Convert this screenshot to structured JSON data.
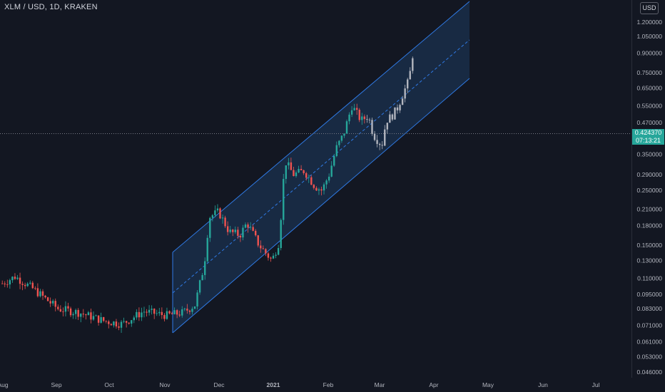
{
  "header": {
    "title": "XLM / USD, 1D, KRAKEN",
    "currency_button": "USD"
  },
  "last_price": {
    "value": "0.424370",
    "countdown": "07:13:21"
  },
  "colors": {
    "background": "#131722",
    "up": "#26a69a",
    "down": "#ef5350",
    "recent": "#b2b5be",
    "channel": "#2962ff",
    "grid_text": "#b2b5be"
  },
  "chart_data": {
    "type": "candlestick",
    "title": "XLM / USD, 1D, KRAKEN",
    "y_scale": "log",
    "ylim": [
      0.043,
      1.43
    ],
    "y_ticks": [
      "1.200000",
      "1.050000",
      "0.900000",
      "0.750000",
      "0.650000",
      "0.550000",
      "0.470000",
      "0.350000",
      "0.290000",
      "0.250000",
      "0.210000",
      "0.180000",
      "0.150000",
      "0.130000",
      "0.110000",
      "0.095000",
      "0.083000",
      "0.071000",
      "0.061000",
      "0.053000",
      "0.046000"
    ],
    "x_ticks": [
      "Aug",
      "Sep",
      "Oct",
      "Nov",
      "Dec",
      "2021",
      "Feb",
      "Mar",
      "Apr",
      "May",
      "Jun",
      "Jul"
    ],
    "anchors": [
      {
        "date": "Aug",
        "price": 0.105
      },
      {
        "date": "Aug",
        "price": 0.112
      },
      {
        "date": "Aug",
        "price": 0.1
      },
      {
        "date": "Sep",
        "price": 0.083
      },
      {
        "date": "Sep",
        "price": 0.08
      },
      {
        "date": "Oct",
        "price": 0.074
      },
      {
        "date": "Oct",
        "price": 0.072
      },
      {
        "date": "Oct",
        "price": 0.081
      },
      {
        "date": "Nov",
        "price": 0.078
      },
      {
        "date": "Nov",
        "price": 0.08
      },
      {
        "date": "Nov",
        "price": 0.086
      },
      {
        "date": "Nov",
        "price": 0.125
      },
      {
        "date": "Nov",
        "price": 0.195
      },
      {
        "date": "Dec",
        "price": 0.205
      },
      {
        "date": "Dec",
        "price": 0.17
      },
      {
        "date": "Dec",
        "price": 0.165
      },
      {
        "date": "Dec",
        "price": 0.185
      },
      {
        "date": "Dec",
        "price": 0.15
      },
      {
        "date": "Dec",
        "price": 0.13
      },
      {
        "date": "2021",
        "price": 0.155
      },
      {
        "date": "2021",
        "price": 0.33
      },
      {
        "date": "2021",
        "price": 0.29
      },
      {
        "date": "2021",
        "price": 0.3
      },
      {
        "date": "2021",
        "price": 0.26
      },
      {
        "date": "2021",
        "price": 0.25
      },
      {
        "date": "Feb",
        "price": 0.29
      },
      {
        "date": "Feb",
        "price": 0.37
      },
      {
        "date": "Feb",
        "price": 0.42
      },
      {
        "date": "Feb",
        "price": 0.55
      },
      {
        "date": "Feb",
        "price": 0.48
      },
      {
        "date": "Feb",
        "price": 0.5
      },
      {
        "date": "Mar",
        "price": 0.42
      },
      {
        "date": "Mar",
        "price": 0.38
      },
      {
        "date": "Mar",
        "price": 0.48
      },
      {
        "date": "Mar",
        "price": 0.5
      },
      {
        "date": "Mar",
        "price": 0.54
      },
      {
        "date": "Mar",
        "price": 0.62
      },
      {
        "date": "Mar",
        "price": 0.7
      },
      {
        "date": "Mar",
        "price": 0.92
      }
    ],
    "channel": {
      "upper": [
        [
          0.135,
          1.43
        ],
        [
          0.135,
          1.43
        ]
      ],
      "note": ""
    },
    "annotations": [
      "0.424370",
      "07:13:21"
    ]
  }
}
